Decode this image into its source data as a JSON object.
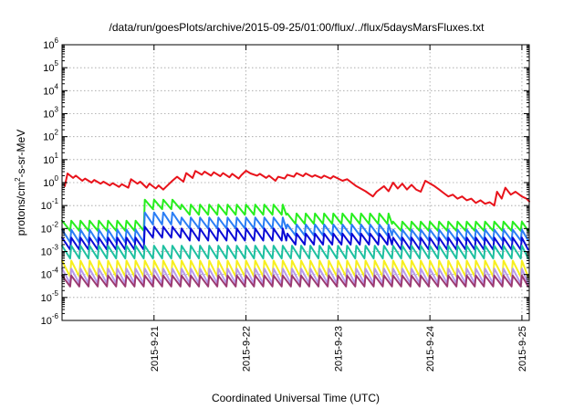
{
  "chart_data": {
    "type": "line",
    "title": "/data/run/goesPlots/archive/2015-09-25/01:00/flux/../flux/5daysMarsFluxes.txt",
    "xlabel": "Coordinated Universal Time (UTC)",
    "ylabel": {
      "base": "protons/cm",
      "sup": "2",
      "rest": "-s-sr-MeV"
    },
    "y_scale": "log",
    "ylim_exponents": [
      -6,
      6
    ],
    "y_ticks": [
      {
        "base": "10",
        "exp": "6"
      },
      {
        "base": "10",
        "exp": "5"
      },
      {
        "base": "10",
        "exp": "4"
      },
      {
        "base": "10",
        "exp": "3"
      },
      {
        "base": "10",
        "exp": "2"
      },
      {
        "base": "10",
        "exp": "1"
      },
      {
        "base": "10",
        "exp": "0"
      },
      {
        "base": "10",
        "exp": "-1"
      },
      {
        "base": "10",
        "exp": "-2"
      },
      {
        "base": "10",
        "exp": "-3"
      },
      {
        "base": "10",
        "exp": "-4"
      },
      {
        "base": "10",
        "exp": "-5"
      },
      {
        "base": "10",
        "exp": "-6"
      }
    ],
    "xlim_days": [
      20.0,
      25.08
    ],
    "x_ticks": [
      {
        "label": "2015-9-21",
        "day": 21
      },
      {
        "label": "2015-9-22",
        "day": 22
      },
      {
        "label": "2015-9-23",
        "day": 23
      },
      {
        "label": "2015-9-24",
        "day": 24
      },
      {
        "label": "2015-9-25",
        "day": 25
      }
    ],
    "grid": true,
    "series": [
      {
        "color": "#e8131b",
        "points": [
          [
            20.03,
            0.7
          ],
          [
            20.06,
            2.5
          ],
          [
            20.12,
            1.6
          ],
          [
            20.15,
            2.0
          ],
          [
            20.22,
            1.2
          ],
          [
            20.25,
            1.5
          ],
          [
            20.32,
            1.0
          ],
          [
            20.35,
            1.3
          ],
          [
            20.42,
            0.9
          ],
          [
            20.45,
            1.1
          ],
          [
            20.52,
            0.75
          ],
          [
            20.55,
            0.95
          ],
          [
            20.62,
            0.65
          ],
          [
            20.65,
            0.85
          ],
          [
            20.72,
            0.6
          ],
          [
            20.75,
            1.4
          ],
          [
            20.82,
            0.9
          ],
          [
            20.85,
            1.1
          ],
          [
            20.92,
            0.6
          ],
          [
            20.95,
            0.9
          ],
          [
            21.02,
            0.55
          ],
          [
            21.05,
            0.75
          ],
          [
            21.1,
            0.5
          ],
          [
            21.13,
            0.65
          ],
          [
            21.2,
            1.2
          ],
          [
            21.25,
            1.8
          ],
          [
            21.32,
            1.1
          ],
          [
            21.35,
            2.6
          ],
          [
            21.42,
            1.6
          ],
          [
            21.45,
            3.2
          ],
          [
            21.52,
            2.2
          ],
          [
            21.55,
            3.0
          ],
          [
            21.62,
            2.0
          ],
          [
            21.65,
            2.8
          ],
          [
            21.72,
            1.9
          ],
          [
            21.75,
            2.6
          ],
          [
            21.82,
            1.7
          ],
          [
            21.85,
            2.4
          ],
          [
            21.92,
            1.5
          ],
          [
            21.95,
            2.1
          ],
          [
            22.0,
            3.3
          ],
          [
            22.05,
            2.5
          ],
          [
            22.12,
            2.0
          ],
          [
            22.15,
            2.4
          ],
          [
            22.22,
            1.6
          ],
          [
            22.25,
            2.0
          ],
          [
            22.32,
            1.2
          ],
          [
            22.35,
            1.8
          ],
          [
            22.42,
            1.5
          ],
          [
            22.45,
            2.2
          ],
          [
            22.52,
            1.8
          ],
          [
            22.55,
            2.6
          ],
          [
            22.62,
            1.9
          ],
          [
            22.65,
            2.5
          ],
          [
            22.72,
            1.8
          ],
          [
            22.75,
            2.1
          ],
          [
            22.82,
            1.6
          ],
          [
            22.85,
            2.0
          ],
          [
            22.92,
            1.5
          ],
          [
            22.95,
            1.9
          ],
          [
            23.05,
            1.2
          ],
          [
            23.1,
            1.4
          ],
          [
            23.2,
            0.7
          ],
          [
            23.3,
            0.42
          ],
          [
            23.38,
            0.25
          ],
          [
            23.42,
            0.4
          ],
          [
            23.5,
            0.7
          ],
          [
            23.55,
            0.42
          ],
          [
            23.6,
            1.0
          ],
          [
            23.65,
            0.55
          ],
          [
            23.7,
            0.9
          ],
          [
            23.75,
            0.5
          ],
          [
            23.8,
            0.8
          ],
          [
            23.85,
            0.5
          ],
          [
            23.9,
            0.4
          ],
          [
            23.95,
            1.2
          ],
          [
            24.05,
            0.7
          ],
          [
            24.1,
            0.5
          ],
          [
            24.15,
            0.35
          ],
          [
            24.2,
            0.25
          ],
          [
            24.25,
            0.3
          ],
          [
            24.3,
            0.2
          ],
          [
            24.35,
            0.25
          ],
          [
            24.4,
            0.17
          ],
          [
            24.45,
            0.2
          ],
          [
            24.5,
            0.13
          ],
          [
            24.55,
            0.17
          ],
          [
            24.6,
            0.12
          ],
          [
            24.65,
            0.14
          ],
          [
            24.7,
            0.1
          ],
          [
            24.73,
            0.4
          ],
          [
            24.78,
            0.2
          ],
          [
            24.82,
            0.6
          ],
          [
            24.88,
            0.3
          ],
          [
            24.93,
            0.4
          ],
          [
            25.0,
            0.25
          ],
          [
            25.05,
            0.2
          ],
          [
            25.08,
            0.15
          ]
        ]
      },
      {
        "color": "#27ee1e",
        "sawtooth": {
          "start": 20.0,
          "end": 25.08,
          "period": 0.1,
          "segments": [
            [
              20.0,
              20.9,
              0.022,
              0.008
            ],
            [
              20.9,
              21.3,
              0.18,
              0.07
            ],
            [
              21.3,
              22.45,
              0.11,
              0.04
            ],
            [
              22.45,
              23.6,
              0.045,
              0.016
            ],
            [
              23.6,
              25.08,
              0.02,
              0.008
            ]
          ]
        }
      },
      {
        "color": "#2b7ef5",
        "sawtooth": {
          "start": 20.0,
          "end": 25.08,
          "period": 0.1,
          "segments": [
            [
              20.0,
              20.9,
              0.009,
              0.0025
            ],
            [
              20.9,
              21.3,
              0.05,
              0.015
            ],
            [
              21.3,
              22.45,
              0.03,
              0.01
            ],
            [
              22.45,
              23.6,
              0.015,
              0.005
            ],
            [
              23.6,
              25.08,
              0.009,
              0.003
            ]
          ]
        }
      },
      {
        "color": "#0a0ad6",
        "sawtooth": {
          "start": 20.0,
          "end": 25.08,
          "period": 0.1,
          "segments": [
            [
              20.0,
              20.9,
              0.004,
              0.0012
            ],
            [
              20.9,
              21.3,
              0.012,
              0.004
            ],
            [
              21.3,
              22.45,
              0.01,
              0.003
            ],
            [
              22.45,
              23.6,
              0.006,
              0.002
            ],
            [
              23.6,
              25.08,
              0.004,
              0.0012
            ]
          ]
        }
      },
      {
        "color": "#1ec0a0",
        "sawtooth": {
          "start": 20.0,
          "end": 25.08,
          "period": 0.1,
          "segments": [
            [
              20.0,
              25.08,
              0.0018,
              0.0005
            ]
          ]
        }
      },
      {
        "color": "#f7ef1e",
        "sawtooth": {
          "start": 20.0,
          "end": 25.08,
          "period": 0.1,
          "segments": [
            [
              20.0,
              25.08,
              0.0004,
              8e-05
            ]
          ]
        }
      },
      {
        "color": "#b89aec",
        "sawtooth": {
          "start": 20.0,
          "end": 25.08,
          "period": 0.1,
          "segments": [
            [
              20.0,
              25.08,
              0.00018,
              4e-05
            ]
          ]
        }
      },
      {
        "color": "#9c3a72",
        "sawtooth": {
          "start": 20.0,
          "end": 25.08,
          "period": 0.1,
          "segments": [
            [
              20.0,
              25.08,
              9e-05,
              3e-05
            ]
          ]
        }
      }
    ]
  }
}
